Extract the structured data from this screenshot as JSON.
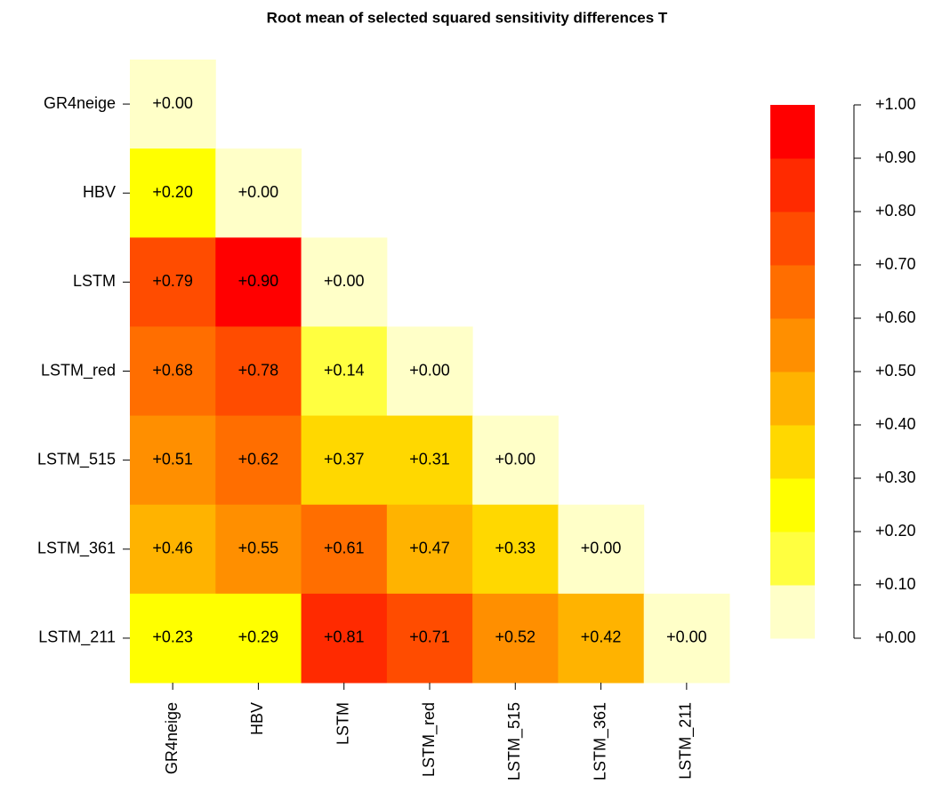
{
  "chart_data": {
    "type": "heatmap",
    "title": "Root mean of selected squared sensitivity differences T",
    "rows": [
      "GR4neige",
      "HBV",
      "LSTM",
      "LSTM_red",
      "LSTM_515",
      "LSTM_361",
      "LSTM_211"
    ],
    "columns": [
      "GR4neige",
      "HBV",
      "LSTM",
      "LSTM_red",
      "LSTM_515",
      "LSTM_361",
      "LSTM_211"
    ],
    "values": [
      [
        0,
        null,
        null,
        null,
        null,
        null,
        null
      ],
      [
        0.2,
        0,
        null,
        null,
        null,
        null,
        null
      ],
      [
        0.79,
        0.9,
        0,
        null,
        null,
        null,
        null
      ],
      [
        0.68,
        0.78,
        0.14,
        0,
        null,
        null,
        null
      ],
      [
        0.51,
        0.62,
        0.37,
        0.31,
        0,
        null,
        null
      ],
      [
        0.46,
        0.55,
        0.61,
        0.47,
        0.33,
        0,
        null
      ],
      [
        0.23,
        0.29,
        0.81,
        0.71,
        0.52,
        0.42,
        0
      ]
    ],
    "value_labels": [
      [
        "+0.00",
        null,
        null,
        null,
        null,
        null,
        null
      ],
      [
        "+0.20",
        "+0.00",
        null,
        null,
        null,
        null,
        null
      ],
      [
        "+0.79",
        "+0.90",
        "+0.00",
        null,
        null,
        null,
        null
      ],
      [
        "+0.68",
        "+0.78",
        "+0.14",
        "+0.00",
        null,
        null,
        null
      ],
      [
        "+0.51",
        "+0.62",
        "+0.37",
        "+0.31",
        "+0.00",
        null,
        null
      ],
      [
        "+0.46",
        "+0.55",
        "+0.61",
        "+0.47",
        "+0.33",
        "+0.00",
        null
      ],
      [
        "+0.23",
        "+0.29",
        "+0.81",
        "+0.71",
        "+0.52",
        "+0.42",
        "+0.00"
      ]
    ],
    "colorbar": {
      "lim": [
        0,
        1
      ],
      "bins": [
        0,
        0.1,
        0.2,
        0.3,
        0.4,
        0.5,
        0.6,
        0.7,
        0.8,
        0.9,
        1.0
      ],
      "colors": [
        "#ffffc8",
        "#ffff40",
        "#ffff00",
        "#ffd800",
        "#ffb300",
        "#ff8f00",
        "#ff6e00",
        "#ff4c00",
        "#ff2a00",
        "#ff0000"
      ],
      "ticks": [
        {
          "value": 0,
          "label": "+0.00"
        },
        {
          "value": 0.1,
          "label": "+0.10"
        },
        {
          "value": 0.2,
          "label": "+0.20"
        },
        {
          "value": 0.3,
          "label": "+0.30"
        },
        {
          "value": 0.4,
          "label": "+0.40"
        },
        {
          "value": 0.5,
          "label": "+0.50"
        },
        {
          "value": 0.6,
          "label": "+0.60"
        },
        {
          "value": 0.7,
          "label": "+0.70"
        },
        {
          "value": 0.8,
          "label": "+0.80"
        },
        {
          "value": 0.9,
          "label": "+0.90"
        },
        {
          "value": 1.0,
          "label": "+1.00"
        }
      ]
    }
  }
}
